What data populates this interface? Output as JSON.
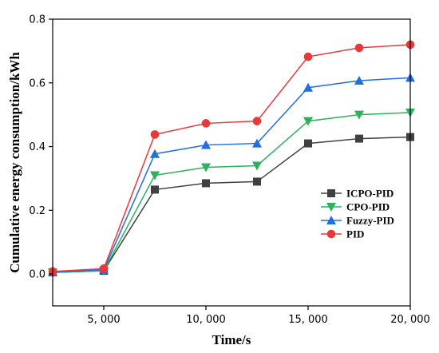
{
  "chart_data": {
    "type": "line",
    "xlabel": "Time/s",
    "ylabel": "Cumulative energy consumption/kWh",
    "xlim": [
      2500,
      20000
    ],
    "ylim": [
      -0.1,
      0.8
    ],
    "x_ticks": [
      5000,
      10000,
      15000,
      20000
    ],
    "x_tick_labels": [
      "5, 000",
      "10, 000",
      "15, 000",
      "20, 000"
    ],
    "y_ticks": [
      0.0,
      0.2,
      0.4,
      0.6,
      0.8
    ],
    "y_tick_labels": [
      "0.0",
      "0.2",
      "0.4",
      "0.6",
      "0.8"
    ],
    "legend_position": "right-middle",
    "x": [
      2500,
      5000,
      7500,
      10000,
      12500,
      15000,
      17500,
      20000
    ],
    "series": [
      {
        "name": "ICPO-PID",
        "color": "#404040",
        "marker": "square",
        "values": [
          0.005,
          0.01,
          0.265,
          0.285,
          0.29,
          0.41,
          0.425,
          0.43
        ]
      },
      {
        "name": "CPO-PID",
        "color": "#2eb05c",
        "marker": "triangle-down",
        "values": [
          0.005,
          0.01,
          0.31,
          0.335,
          0.34,
          0.48,
          0.5,
          0.507
        ]
      },
      {
        "name": "Fuzzy-PID",
        "color": "#1f6fe0",
        "marker": "triangle-up",
        "values": [
          0.006,
          0.013,
          0.377,
          0.405,
          0.41,
          0.585,
          0.607,
          0.616
        ]
      },
      {
        "name": "PID",
        "color": "#e8383a",
        "marker": "circle",
        "values": [
          0.008,
          0.017,
          0.438,
          0.473,
          0.48,
          0.682,
          0.71,
          0.72
        ]
      }
    ]
  }
}
